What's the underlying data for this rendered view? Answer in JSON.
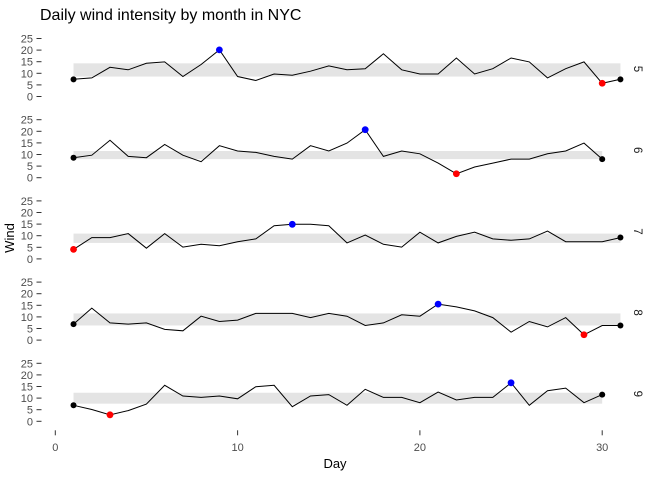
{
  "chart_data": {
    "type": "line",
    "title": "Daily wind intensity by month in NYC",
    "xlabel": "Day",
    "ylabel": "Wind",
    "x_ticks": [
      0,
      10,
      20,
      30
    ],
    "y_ticks": [
      0,
      5,
      10,
      15,
      20,
      25
    ],
    "xlim": [
      0,
      31
    ],
    "ylim": [
      0,
      25
    ],
    "grid": false,
    "legend": "none",
    "facet_labels_right": [
      "5",
      "6",
      "7",
      "8",
      "9"
    ],
    "colors": {
      "line": "#000000",
      "band": "#e4e4e4",
      "max_point": "#0000ff",
      "min_point": "#ff0000",
      "endpoint": "#000000",
      "tick_text": "#4d4d4d",
      "tick_mark": "#333333",
      "background": "#ffffff"
    },
    "facets": [
      {
        "label": "5",
        "band_low": 8.6,
        "band_high": 14.3,
        "max": {
          "day": 9,
          "value": 20.1
        },
        "min": {
          "day": 30,
          "value": 5.7
        },
        "values": [
          7.4,
          8.0,
          12.6,
          11.5,
          14.3,
          14.9,
          8.6,
          13.8,
          20.1,
          8.6,
          6.9,
          9.7,
          9.2,
          10.9,
          13.2,
          11.5,
          12.0,
          18.4,
          11.5,
          9.7,
          9.7,
          16.6,
          9.7,
          12.0,
          16.6,
          14.9,
          8.0,
          12.0,
          14.9,
          5.7,
          7.4
        ]
      },
      {
        "label": "6",
        "band_low": 8.0,
        "band_high": 11.5,
        "max": {
          "day": 17,
          "value": 20.7
        },
        "min": {
          "day": 22,
          "value": 1.7
        },
        "values": [
          8.6,
          9.7,
          16.1,
          9.2,
          8.6,
          14.3,
          9.7,
          6.9,
          13.8,
          11.5,
          10.9,
          9.2,
          8.0,
          13.8,
          11.5,
          14.9,
          20.7,
          9.2,
          11.5,
          10.3,
          6.3,
          1.7,
          4.6,
          6.3,
          8.0,
          8.0,
          10.3,
          11.5,
          14.9,
          8.0
        ]
      },
      {
        "label": "7",
        "band_low": 6.9,
        "band_high": 10.9,
        "max": {
          "day": 13,
          "value": 14.9
        },
        "min": {
          "day": 1,
          "value": 4.1
        },
        "values": [
          4.1,
          9.2,
          9.2,
          10.9,
          4.6,
          10.9,
          5.1,
          6.3,
          5.7,
          7.4,
          8.6,
          14.3,
          14.9,
          14.9,
          14.3,
          6.9,
          10.3,
          6.3,
          5.1,
          11.5,
          6.9,
          9.7,
          11.5,
          8.6,
          8.0,
          8.6,
          12.0,
          7.4,
          7.4,
          7.4,
          9.2
        ]
      },
      {
        "label": "8",
        "band_low": 6.3,
        "band_high": 11.5,
        "max": {
          "day": 21,
          "value": 15.5
        },
        "min": {
          "day": 29,
          "value": 2.3
        },
        "values": [
          6.9,
          13.8,
          7.4,
          6.9,
          7.4,
          4.6,
          4.0,
          10.3,
          8.0,
          8.6,
          11.5,
          11.5,
          11.5,
          9.7,
          11.5,
          10.3,
          6.3,
          7.4,
          10.9,
          10.3,
          15.5,
          14.3,
          12.6,
          9.7,
          3.4,
          8.0,
          5.7,
          9.7,
          2.3,
          6.3,
          6.3
        ]
      },
      {
        "label": "9",
        "band_low": 7.6,
        "band_high": 12.3,
        "max": {
          "day": 25,
          "value": 16.6
        },
        "min": {
          "day": 3,
          "value": 2.8
        },
        "values": [
          6.9,
          5.1,
          2.8,
          4.6,
          7.4,
          15.5,
          10.9,
          10.3,
          10.9,
          9.7,
          14.9,
          15.5,
          6.3,
          10.9,
          11.5,
          6.9,
          13.8,
          10.3,
          10.3,
          8.0,
          12.6,
          9.2,
          10.3,
          10.3,
          16.6,
          6.9,
          13.2,
          14.3,
          8.0,
          11.5
        ]
      }
    ]
  }
}
